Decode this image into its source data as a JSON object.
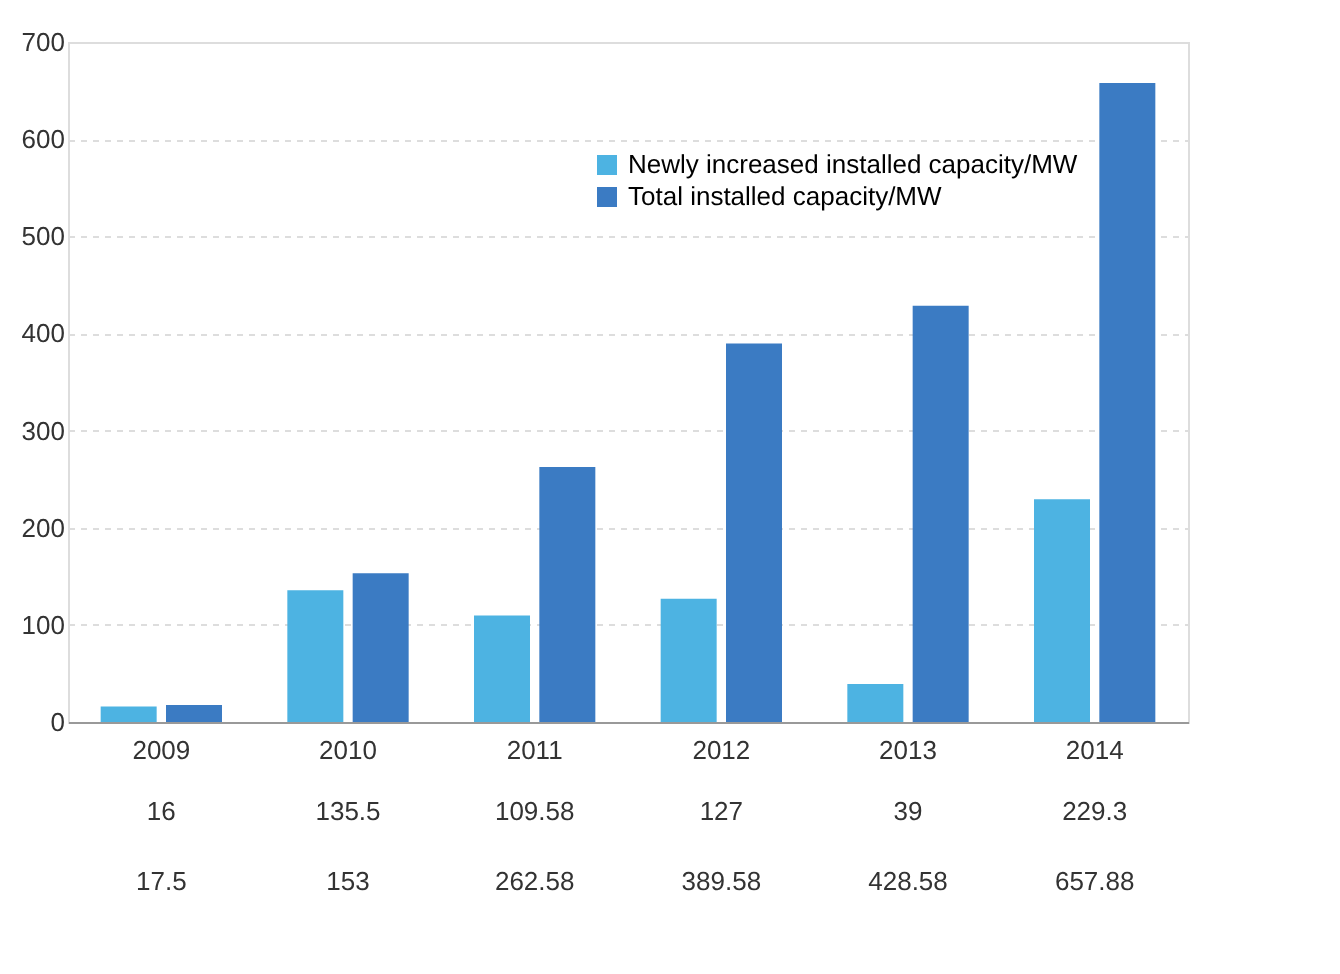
{
  "chart_data": {
    "type": "bar",
    "categories": [
      "2009",
      "2010",
      "2011",
      "2012",
      "2013",
      "2014"
    ],
    "series": [
      {
        "name": "Newly increased installed capacity/MW",
        "color": "#4db3e2",
        "values": [
          16,
          135.5,
          109.58,
          127,
          39,
          229.3
        ]
      },
      {
        "name": "Total installed capacity/MW",
        "color": "#3b7bc3",
        "values": [
          17.5,
          153,
          262.58,
          389.58,
          428.58,
          657.88
        ]
      }
    ],
    "ylim": [
      0,
      700
    ],
    "yticks": [
      0,
      100,
      200,
      300,
      400,
      500,
      600,
      700
    ],
    "grid": "y",
    "legend": "top right",
    "data_labels": true
  }
}
